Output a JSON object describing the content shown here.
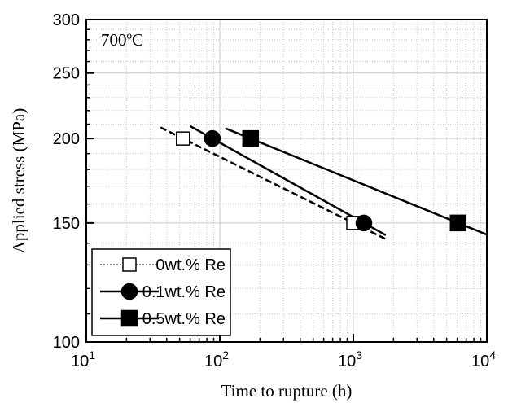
{
  "chart_data": {
    "type": "scatter",
    "annotation": "700ºC",
    "xlabel": "Time to rupture (h)",
    "ylabel": "Applied stress (MPa)",
    "x_scale": "log",
    "y_scale": "log",
    "xlim": [
      10,
      10000
    ],
    "ylim": [
      100,
      300
    ],
    "x_ticks": [
      10,
      100,
      1000,
      10000
    ],
    "x_tick_labels": [
      {
        "base": "10",
        "exp": "1"
      },
      {
        "base": "10",
        "exp": "2"
      },
      {
        "base": "10",
        "exp": "3"
      },
      {
        "base": "10",
        "exp": "4"
      }
    ],
    "y_ticks": [
      100,
      150,
      200,
      250,
      300
    ],
    "y_tick_labels": [
      "100",
      "150",
      "200",
      "250",
      "300"
    ],
    "grid": true,
    "legend_position": "bottom-left",
    "series": [
      {
        "name": "0wt.% Re",
        "marker": "open-square",
        "line_style": "dashed",
        "points": [
          {
            "x": 53,
            "y": 200
          },
          {
            "x": 1000,
            "y": 150
          }
        ],
        "fit_range": [
          36,
          1800
        ]
      },
      {
        "name": "0.1wt.% Re",
        "marker": "filled-circle",
        "line_style": "solid",
        "points": [
          {
            "x": 88,
            "y": 200
          },
          {
            "x": 1200,
            "y": 150
          }
        ],
        "fit_range": [
          60,
          1750
        ]
      },
      {
        "name": "0.5wt.% Re",
        "marker": "filled-square",
        "line_style": "solid",
        "points": [
          {
            "x": 170,
            "y": 200
          },
          {
            "x": 6100,
            "y": 150
          }
        ],
        "fit_range": [
          110,
          10000
        ]
      }
    ],
    "colors": {
      "marker": "#000000",
      "open_fill": "#ffffff",
      "grid": "#c8c8c8"
    }
  }
}
